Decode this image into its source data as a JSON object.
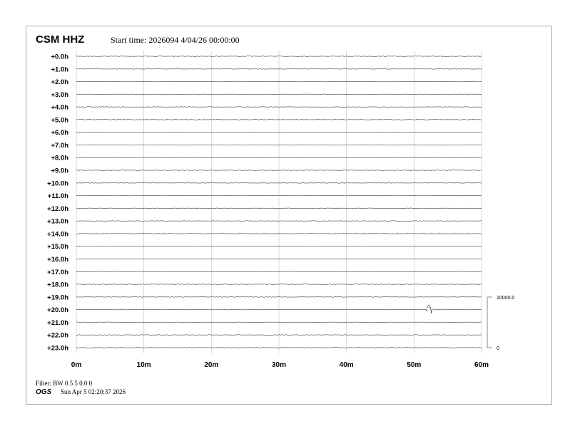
{
  "header": {
    "station": "CSM HHZ",
    "start_time": "Start time: 2026094  4/04/26 00:00:00"
  },
  "footer": {
    "filter": "Filter: BW 0.5 5 0.0 0",
    "org": "OGS",
    "generated": "Sun Apr  5 02:20:37 2026"
  },
  "chart_data": {
    "type": "line",
    "title": "CSM HHZ",
    "subtitle": "Start time: 2026094  4/04/26 00:00:00",
    "xlabel": "",
    "ylabel": "",
    "xlim": [
      0,
      60
    ],
    "x_ticks": [
      "0m",
      "10m",
      "20m",
      "30m",
      "40m",
      "50m",
      "60m"
    ],
    "row_labels": [
      "+0.0h",
      "+1.0h",
      "+2.0h",
      "+3.0h",
      "+4.0h",
      "+5.0h",
      "+6.0h",
      "+7.0h",
      "+8.0h",
      "+9.0h",
      "+10.0h",
      "+11.0h",
      "+12.0h",
      "+13.0h",
      "+14.0h",
      "+15.0h",
      "+16.0h",
      "+17.0h",
      "+18.0h",
      "+19.0h",
      "+20.0h",
      "+21.0h",
      "+22.0h",
      "+23.0h"
    ],
    "grid": true,
    "scale_bar": {
      "top_label": "10000.0",
      "bottom_label": "0"
    },
    "events": [
      {
        "hour": 20,
        "minute": 52.3,
        "relative_amplitude": 0.45
      },
      {
        "hour": 22,
        "minute": 38.5,
        "relative_amplitude": 0.05
      }
    ],
    "trace_color": "#000000",
    "grid_color": "#cccccc"
  }
}
